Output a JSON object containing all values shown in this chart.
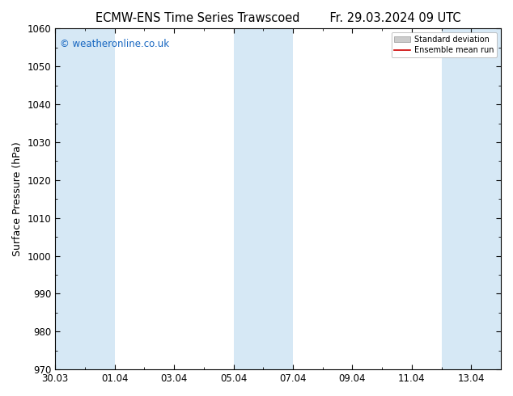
{
  "title_left": "ECMW-ENS Time Series Trawscoed",
  "title_right": "Fr. 29.03.2024 09 UTC",
  "ylabel": "Surface Pressure (hPa)",
  "ylim": [
    970,
    1060
  ],
  "yticks": [
    970,
    980,
    990,
    1000,
    1010,
    1020,
    1030,
    1040,
    1050,
    1060
  ],
  "xlim": [
    0,
    15
  ],
  "xtick_labels": [
    "30.03",
    "01.04",
    "03.04",
    "05.04",
    "07.04",
    "09.04",
    "11.04",
    "13.04"
  ],
  "xtick_positions": [
    0,
    2,
    4,
    6,
    8,
    10,
    12,
    14
  ],
  "shade_bands": [
    {
      "start": 0,
      "end": 2,
      "color": "#d6e8f5"
    },
    {
      "start": 6,
      "end": 8,
      "color": "#d6e8f5"
    },
    {
      "start": 13,
      "end": 15,
      "color": "#d6e8f5"
    }
  ],
  "watermark": "© weatheronline.co.uk",
  "watermark_color": "#1565C0",
  "legend_std_color": "#aaaaaa",
  "legend_mean_color": "#cc0000",
  "background_color": "#ffffff",
  "plot_bg_color": "#ffffff",
  "title_fontsize": 10.5,
  "axis_fontsize": 9,
  "tick_fontsize": 8.5
}
